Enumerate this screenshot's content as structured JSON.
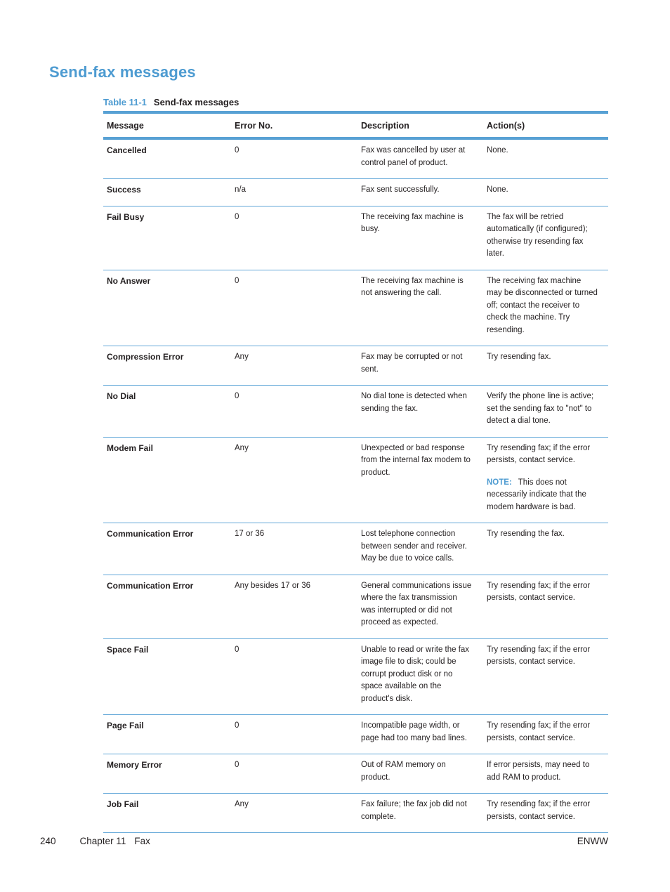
{
  "page": {
    "title": "Send-fax messages"
  },
  "colors": {
    "accent_blue": "#4d9bd1",
    "table_rule_thick_blue": "#58a1d4",
    "table_rule_thin_blue": "#62a7d8",
    "text_black": "#231f20"
  },
  "table": {
    "caption_label": "Table 11-1",
    "caption_title": "Send-fax messages",
    "columns": [
      "Message",
      "Error No.",
      "Description",
      "Action(s)"
    ],
    "rows": [
      {
        "message": "Cancelled",
        "error_no": "0",
        "description": "Fax was cancelled by user at control panel of product.",
        "actions": [
          {
            "text": "None."
          }
        ]
      },
      {
        "message": "Success",
        "error_no": "n/a",
        "description": "Fax sent successfully.",
        "actions": [
          {
            "text": "None."
          }
        ]
      },
      {
        "message": "Fail Busy",
        "error_no": "0",
        "description": "The receiving fax machine is busy.",
        "actions": [
          {
            "text": "The fax will be retried automatically (if configured); otherwise try resending fax later."
          }
        ]
      },
      {
        "message": "No Answer",
        "error_no": "0",
        "description": "The receiving fax machine is not answering the call.",
        "actions": [
          {
            "text": "The receiving fax machine may be disconnected or turned off; contact the receiver to check the machine. Try resending."
          }
        ]
      },
      {
        "message": "Compression Error",
        "error_no": "Any",
        "description": "Fax may be corrupted or not sent.",
        "actions": [
          {
            "text": "Try resending fax."
          }
        ]
      },
      {
        "message": "No Dial",
        "error_no": "0",
        "description": "No dial tone is detected when sending the fax.",
        "actions": [
          {
            "text": "Verify the phone line is active; set the sending fax to \"not\" to detect a dial tone."
          }
        ]
      },
      {
        "message": "Modem Fail",
        "error_no": "Any",
        "description": "Unexpected or bad response from the internal fax modem to product.",
        "actions": [
          {
            "text": "Try resending fax; if the error persists, contact service."
          },
          {
            "note_label": "NOTE:",
            "text": "This does not necessarily indicate that the modem hardware is bad."
          }
        ]
      },
      {
        "message": "Communication Error",
        "error_no": "17 or 36",
        "description": "Lost telephone connection between sender and receiver. May be due to voice calls.",
        "actions": [
          {
            "text": "Try resending the fax."
          }
        ]
      },
      {
        "message": "Communication Error",
        "error_no": "Any besides 17 or 36",
        "description": "General communications issue where the fax transmission was interrupted or did not proceed as expected.",
        "actions": [
          {
            "text": "Try resending fax; if the error persists, contact service."
          }
        ]
      },
      {
        "message": "Space Fail",
        "error_no": "0",
        "description": "Unable to read or write the fax image file to disk; could be corrupt product disk or no space available on the product's disk.",
        "actions": [
          {
            "text": "Try resending fax; if the error persists, contact service."
          }
        ]
      },
      {
        "message": "Page Fail",
        "error_no": "0",
        "description": "Incompatible page width, or page had too many bad lines.",
        "actions": [
          {
            "text": "Try resending fax; if the error persists, contact service."
          }
        ]
      },
      {
        "message": "Memory Error",
        "error_no": "0",
        "description": "Out of RAM memory on product.",
        "actions": [
          {
            "text": "If error persists, may need to add RAM to product."
          }
        ]
      },
      {
        "message": "Job Fail",
        "error_no": "Any",
        "description": "Fax failure; the fax job did not complete.",
        "actions": [
          {
            "text": "Try resending fax; if the error persists, contact service."
          }
        ]
      }
    ]
  },
  "footer": {
    "page_number": "240",
    "chapter": "Chapter 11",
    "section": "Fax",
    "right_label": "ENWW"
  }
}
